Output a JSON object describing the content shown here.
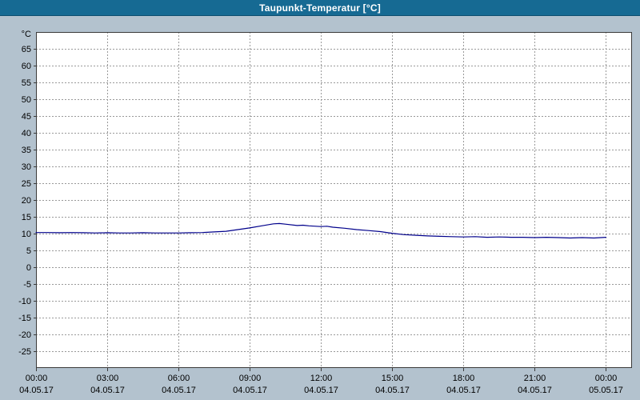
{
  "window": {
    "title": "Taupunkt-Temperatur [°C]"
  },
  "colors": {
    "titlebar_bg": "#166a93",
    "titlebar_text": "#ffffff",
    "page_bg": "#b3c2ce",
    "plot_bg": "#ffffff",
    "grid": "#9a9a9a",
    "axis": "#3a3a3a",
    "line": "#00008b",
    "text": "#000000"
  },
  "chart_data": {
    "type": "line",
    "title": "Taupunkt-Temperatur [°C]",
    "ylabel": "°C",
    "xlabel": "",
    "ylim": [
      -30,
      70
    ],
    "yticks": [
      65,
      60,
      55,
      50,
      45,
      40,
      35,
      30,
      25,
      20,
      15,
      10,
      5,
      0,
      -5,
      -10,
      -15,
      -20,
      -25
    ],
    "xlim_hours": [
      0,
      25.1
    ],
    "grid": true,
    "legend_position": "none",
    "xticks": [
      {
        "hour": 0,
        "time": "00:00",
        "date": "04.05.17"
      },
      {
        "hour": 3,
        "time": "03:00",
        "date": "04.05.17"
      },
      {
        "hour": 6,
        "time": "06:00",
        "date": "04.05.17"
      },
      {
        "hour": 9,
        "time": "09:00",
        "date": "04.05.17"
      },
      {
        "hour": 12,
        "time": "12:00",
        "date": "04.05.17"
      },
      {
        "hour": 15,
        "time": "15:00",
        "date": "04.05.17"
      },
      {
        "hour": 18,
        "time": "18:00",
        "date": "04.05.17"
      },
      {
        "hour": 21,
        "time": "21:00",
        "date": "04.05.17"
      },
      {
        "hour": 24,
        "time": "00:00",
        "date": "05.05.17"
      }
    ],
    "series": [
      {
        "name": "Taupunkt-Temperatur",
        "color": "#00008b",
        "points": [
          [
            0,
            10.3
          ],
          [
            0.5,
            10.3
          ],
          [
            1,
            10.25
          ],
          [
            1.5,
            10.3
          ],
          [
            2,
            10.25
          ],
          [
            2.5,
            10.2
          ],
          [
            3,
            10.25
          ],
          [
            3.5,
            10.2
          ],
          [
            4,
            10.2
          ],
          [
            4.5,
            10.25
          ],
          [
            5,
            10.2
          ],
          [
            5.5,
            10.2
          ],
          [
            6,
            10.2
          ],
          [
            6.5,
            10.25
          ],
          [
            7,
            10.3
          ],
          [
            7.5,
            10.5
          ],
          [
            8,
            10.7
          ],
          [
            8.5,
            11.2
          ],
          [
            9,
            11.7
          ],
          [
            9.5,
            12.3
          ],
          [
            10,
            12.9
          ],
          [
            10.25,
            13.0
          ],
          [
            10.5,
            12.8
          ],
          [
            11,
            12.4
          ],
          [
            11.25,
            12.5
          ],
          [
            11.5,
            12.3
          ],
          [
            12,
            12.1
          ],
          [
            12.25,
            12.2
          ],
          [
            12.5,
            11.9
          ],
          [
            13,
            11.6
          ],
          [
            13.5,
            11.2
          ],
          [
            14,
            10.9
          ],
          [
            14.5,
            10.6
          ],
          [
            15,
            10.1
          ],
          [
            15.5,
            9.7
          ],
          [
            16,
            9.5
          ],
          [
            16.5,
            9.3
          ],
          [
            17,
            9.2
          ],
          [
            17.5,
            9.1
          ],
          [
            18,
            9.0
          ],
          [
            18.5,
            9.1
          ],
          [
            19,
            8.9
          ],
          [
            19.5,
            9.0
          ],
          [
            20,
            8.9
          ],
          [
            20.5,
            8.9
          ],
          [
            21,
            8.8
          ],
          [
            21.5,
            8.9
          ],
          [
            22,
            8.8
          ],
          [
            22.5,
            8.7
          ],
          [
            23,
            8.8
          ],
          [
            23.5,
            8.7
          ],
          [
            24,
            8.9
          ]
        ]
      }
    ]
  }
}
